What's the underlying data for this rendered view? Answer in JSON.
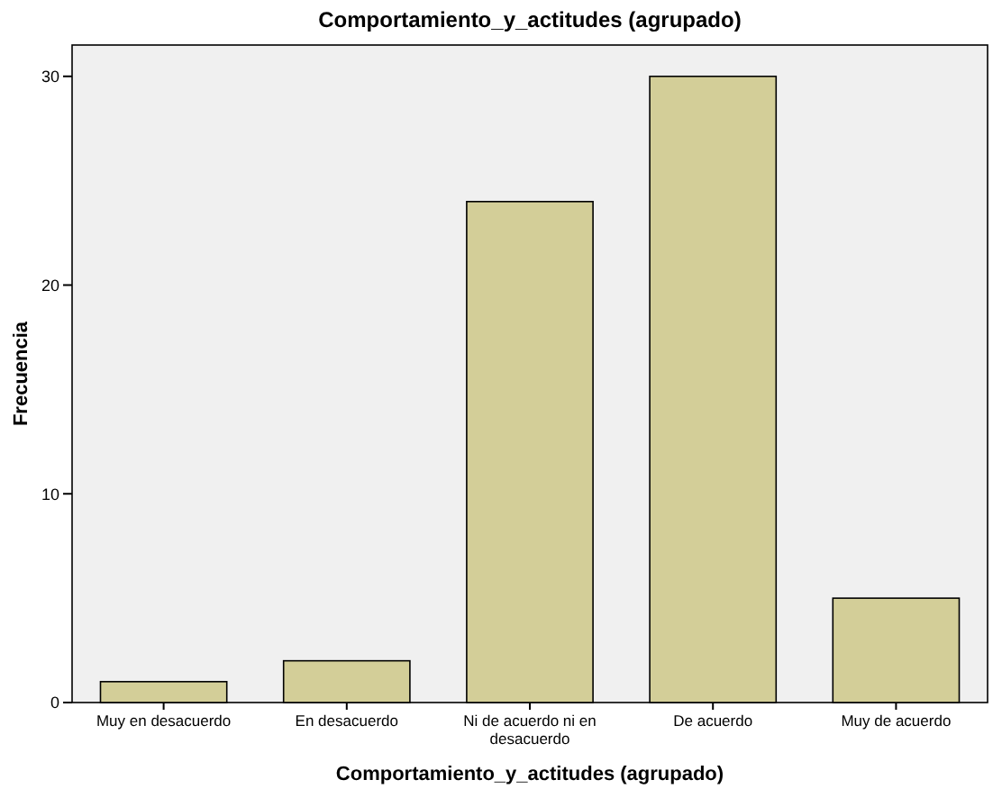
{
  "chart_data": {
    "type": "bar",
    "title": "Comportamiento_y_actitudes (agrupado)",
    "xlabel": "Comportamiento_y_actitudes (agrupado)",
    "ylabel": "Frecuencia",
    "categories": [
      "Muy en desacuerdo",
      "En desacuerdo",
      "Ni de acuerdo ni en desacuerdo",
      "De acuerdo",
      "Muy de acuerdo"
    ],
    "values": [
      1,
      2,
      24,
      30,
      5
    ],
    "color": "#d3ce98",
    "ylim": [
      0,
      31.5
    ],
    "yticks": [
      0,
      10,
      20,
      30
    ],
    "grid": false
  }
}
